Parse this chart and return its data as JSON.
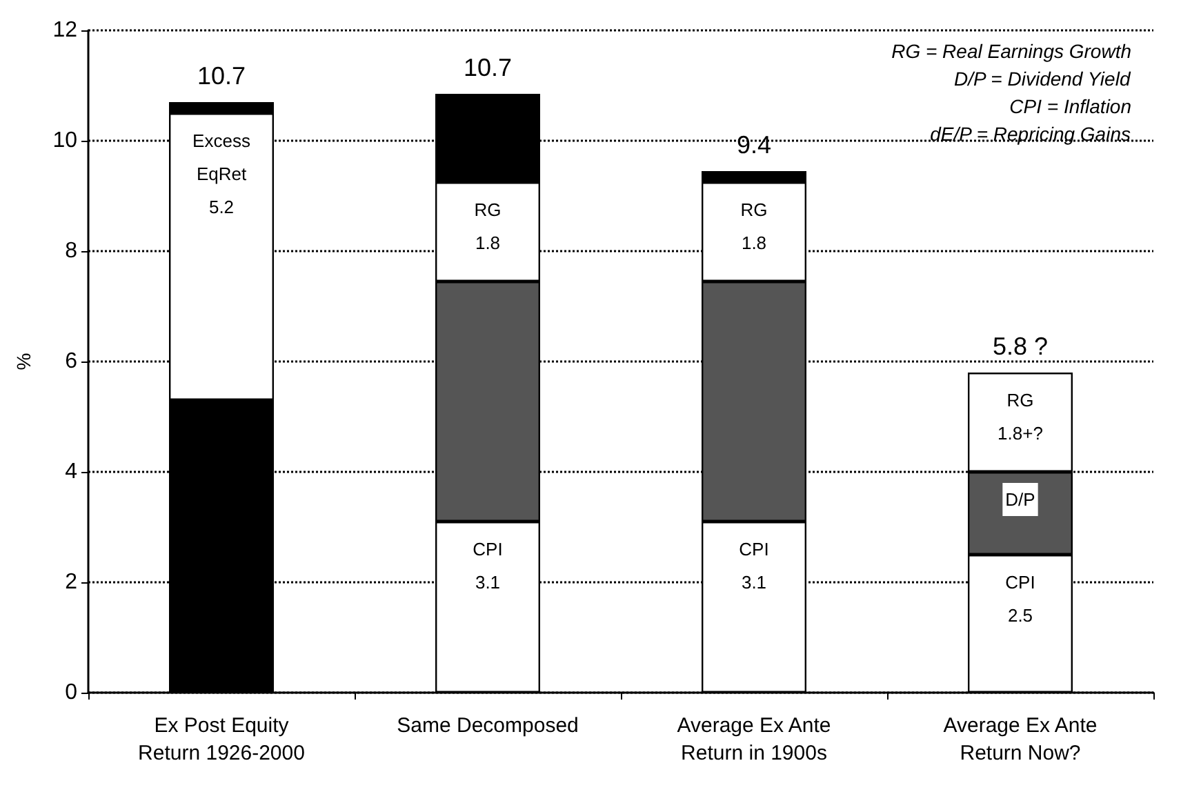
{
  "chart_data": {
    "type": "bar",
    "stacked": true,
    "ylabel": "%",
    "categories": [
      "Ex Post Equity\nReturn 1926-2000",
      "Same Decomposed",
      "Average Ex Ante\nReturn in 1900s",
      "Average Ex Ante\nReturn Now?"
    ],
    "series": [
      {
        "colors": [
          "#000000",
          "#ffffff",
          "#ffffff",
          "#ffffff"
        ],
        "values": [
          5.3,
          3.1,
          3.1,
          2.5
        ],
        "value_labels": [
          null,
          "CPI\n3.1",
          "CPI\n3.1",
          "CPI\n2.5"
        ]
      },
      {
        "colors": [
          "#ffffff",
          "#555555",
          "#555555",
          "#555555"
        ],
        "values": [
          5.2,
          4.35,
          4.35,
          1.5
        ],
        "value_labels": [
          "Excess\nEqRet\n5.2",
          null,
          null,
          "D/P"
        ]
      },
      {
        "color": "#ffffff",
        "values": [
          null,
          1.8,
          1.8,
          1.8
        ],
        "value_labels": [
          null,
          "RG\n1.8",
          "RG\n1.8",
          "RG\n1.8+?"
        ]
      },
      {
        "color": "#000000",
        "values": [
          0.2,
          1.6,
          0.2,
          null
        ]
      }
    ],
    "totals": [
      "10.7",
      "10.7",
      "9.4",
      "5.8 ?"
    ],
    "ylim": [
      0,
      12
    ],
    "yticks": [
      0,
      2,
      4,
      6,
      8,
      10,
      12
    ],
    "grid": "y",
    "annotations": [
      "RG = Real Earnings Growth",
      "D/P = Dividend Yield",
      "CPI = Inflation",
      "dE/P = Repricing Gains"
    ]
  }
}
